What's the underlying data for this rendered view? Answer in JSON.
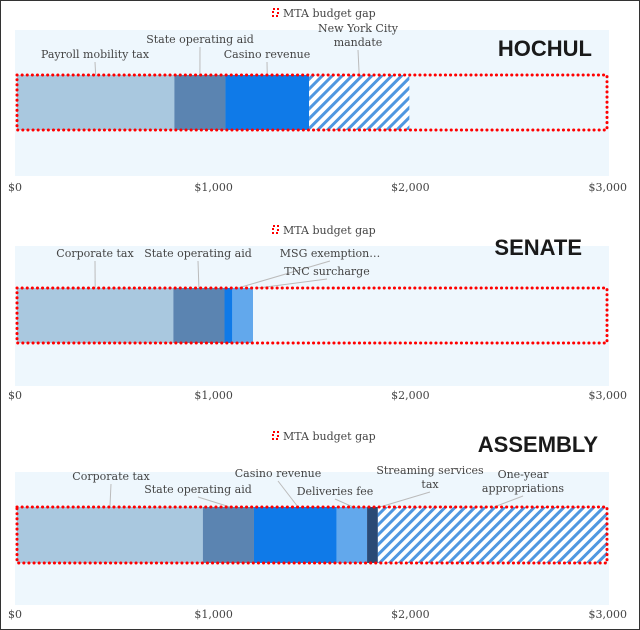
{
  "chart_data": [
    {
      "type": "bar",
      "orientation": "horizontal-stacked",
      "title": "HOCHUL",
      "legend": {
        "label": "MTA budget gap",
        "placement": "top",
        "color": "#ff0000",
        "style": "dotted outline"
      },
      "gap_total": 3000,
      "xlim": [
        0,
        3000
      ],
      "xticks": [
        "$0",
        "$1,000",
        "$2,000",
        "$3,000"
      ],
      "tick_values": [
        0,
        1000,
        2000,
        3000
      ],
      "segments": [
        {
          "label": "Payroll mobility tax",
          "value": 800,
          "color": "#a9c8df"
        },
        {
          "label": "State operating aid",
          "value": 260,
          "color": "#5b84b1"
        },
        {
          "label": "Casino revenue",
          "value": 425,
          "color": "#0f7ae8"
        },
        {
          "label": "New York City mandate",
          "value": 510,
          "color": "#5ea4e8",
          "pattern": "hatched"
        }
      ]
    },
    {
      "type": "bar",
      "orientation": "horizontal-stacked",
      "title": "SENATE",
      "legend": {
        "label": "MTA budget gap",
        "placement": "top",
        "color": "#ff0000",
        "style": "dotted outline"
      },
      "gap_total": 3000,
      "xlim": [
        0,
        3000
      ],
      "xticks": [
        "$0",
        "$1,000",
        "$2,000",
        "$3,000"
      ],
      "tick_values": [
        0,
        1000,
        2000,
        3000
      ],
      "segments": [
        {
          "label": "Corporate tax",
          "value": 795,
          "color": "#a9c8df"
        },
        {
          "label": "State operating aid",
          "value": 260,
          "color": "#5b84b1"
        },
        {
          "label": "MSG exemption…",
          "value": 40,
          "color": "#0f7ae8"
        },
        {
          "label": "TNC surcharge",
          "value": 105,
          "color": "#62a8ec"
        }
      ]
    },
    {
      "type": "bar",
      "orientation": "horizontal-stacked",
      "title": "ASSEMBLY",
      "legend": {
        "label": "MTA budget gap",
        "placement": "top",
        "color": "#ff0000",
        "style": "dotted outline"
      },
      "gap_total": 3000,
      "xlim": [
        0,
        3000
      ],
      "xticks": [
        "$0",
        "$1,000",
        "$2,000",
        "$3,000"
      ],
      "tick_values": [
        0,
        1000,
        2000,
        3000
      ],
      "segments": [
        {
          "label": "Corporate tax",
          "value": 945,
          "color": "#a9c8df"
        },
        {
          "label": "State operating aid",
          "value": 260,
          "color": "#5b84b1"
        },
        {
          "label": "Casino revenue",
          "value": 420,
          "color": "#0f7ae8"
        },
        {
          "label": "Deliveries fee",
          "value": 155,
          "color": "#62a8ec"
        },
        {
          "label": "Streaming services tax",
          "value": 55,
          "color": "#2a4a75"
        },
        {
          "label": "One-year appropriations",
          "value": 1165,
          "color": "#5ea4e8",
          "pattern": "hatched"
        }
      ]
    }
  ]
}
